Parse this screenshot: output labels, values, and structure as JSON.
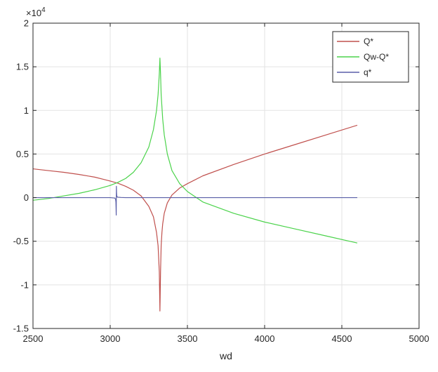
{
  "chart_data": {
    "type": "line",
    "title": "",
    "xlabel": "wd",
    "ylabel": "",
    "exponent_label": "×10",
    "exponent_power": "4",
    "xlim": [
      2500,
      5000
    ],
    "ylim": [
      -1.5,
      2
    ],
    "xticks": [
      2500,
      3000,
      3500,
      4000,
      4500,
      5000
    ],
    "yticks": [
      -1.5,
      -1,
      -0.5,
      0,
      0.5,
      1,
      1.5,
      2
    ],
    "xtick_labels": [
      "2500",
      "3000",
      "3500",
      "4000",
      "4500",
      "5000"
    ],
    "ytick_labels": [
      "-1.5",
      "-1",
      "-0.5",
      "0",
      "0.5",
      "1",
      "1.5",
      "2"
    ],
    "grid": true,
    "legend_position": "top-right",
    "series": [
      {
        "name": "Q*",
        "color": "#c0504d",
        "x": [
          2500,
          2600,
          2700,
          2800,
          2900,
          3000,
          3050,
          3100,
          3150,
          3200,
          3250,
          3280,
          3300,
          3310,
          3318,
          3322,
          3326,
          3330,
          3335,
          3340,
          3350,
          3370,
          3400,
          3450,
          3500,
          3600,
          3800,
          4000,
          4200,
          4400,
          4600
        ],
        "y": [
          0.33,
          0.31,
          0.29,
          0.265,
          0.235,
          0.19,
          0.165,
          0.13,
          0.085,
          0.02,
          -0.1,
          -0.22,
          -0.4,
          -0.55,
          -0.85,
          -1.3,
          -0.85,
          -0.55,
          -0.4,
          -0.3,
          -0.18,
          -0.06,
          0.03,
          0.11,
          0.16,
          0.25,
          0.38,
          0.5,
          0.61,
          0.72,
          0.83
        ]
      },
      {
        "name": "Qw-Q*",
        "color": "#4bd34b",
        "x": [
          2500,
          2600,
          2700,
          2800,
          2900,
          3000,
          3050,
          3100,
          3150,
          3200,
          3250,
          3280,
          3300,
          3310,
          3318,
          3322,
          3326,
          3330,
          3340,
          3350,
          3370,
          3400,
          3450,
          3500,
          3600,
          3800,
          4000,
          4200,
          4400,
          4600
        ],
        "y": [
          -0.03,
          -0.01,
          0.02,
          0.05,
          0.09,
          0.14,
          0.175,
          0.22,
          0.29,
          0.4,
          0.58,
          0.78,
          1.0,
          1.18,
          1.42,
          1.6,
          1.42,
          1.18,
          0.9,
          0.72,
          0.5,
          0.31,
          0.16,
          0.07,
          -0.05,
          -0.18,
          -0.28,
          -0.36,
          -0.44,
          -0.52
        ]
      },
      {
        "name": "q*",
        "color": "#5a5fa8",
        "x": [
          2500,
          2800,
          3000,
          3030,
          3035,
          3037,
          3038,
          3039,
          3040,
          3041,
          3042,
          3044,
          3050,
          3070,
          3100,
          3200,
          3500,
          4000,
          4600
        ],
        "y": [
          0,
          0,
          0,
          -0.005,
          -0.02,
          -0.05,
          -0.12,
          -0.2,
          0.13,
          0.06,
          0.03,
          0.01,
          0.005,
          0.002,
          0,
          0,
          0,
          0,
          0
        ]
      }
    ]
  }
}
